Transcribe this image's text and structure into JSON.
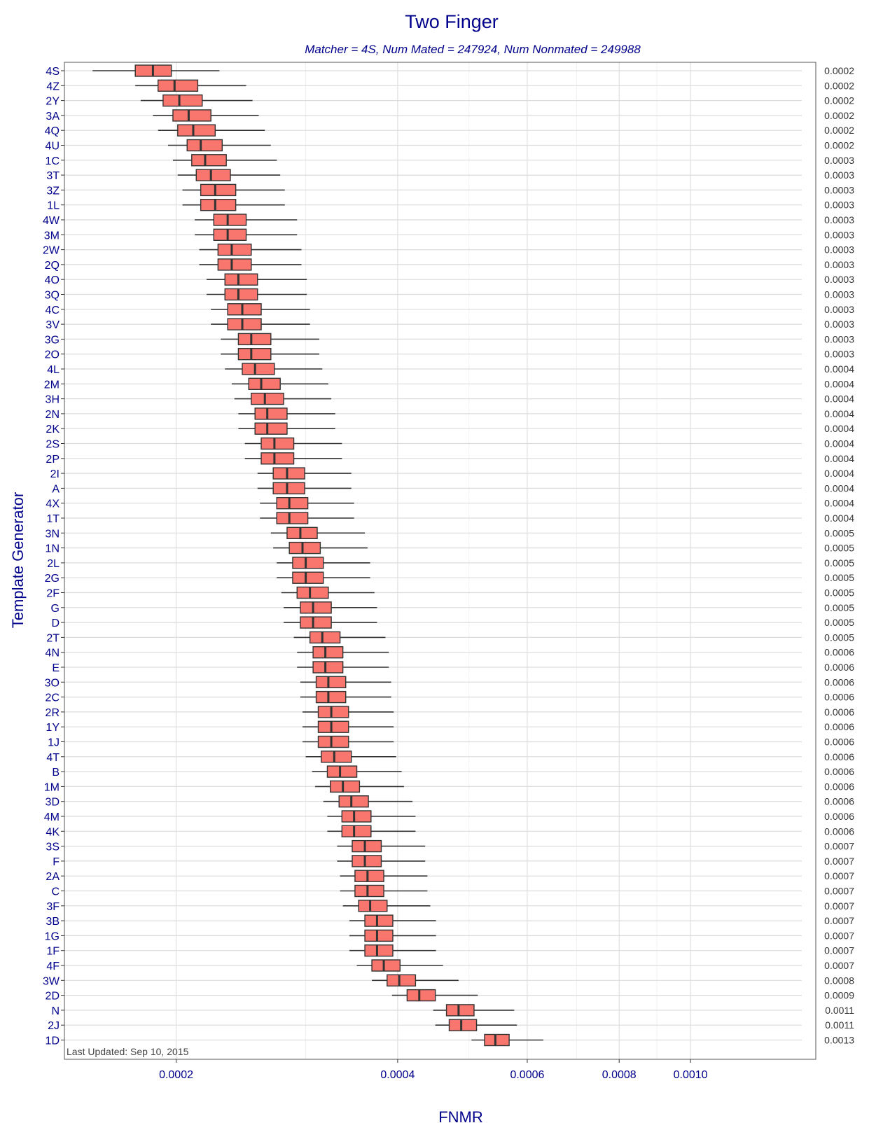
{
  "chart_data": {
    "type": "boxplot",
    "title": "Two Finger",
    "subtitle": "Matcher = 4S,   Num Mated = 247924,   Num Nonmated = 249988",
    "xlabel": "FNMR",
    "ylabel": "Template Generator",
    "x_scale": "log",
    "xlim": [
      0.000141,
      0.00148
    ],
    "x_ticks": [
      {
        "value": 0.0002,
        "label": "0.0002"
      },
      {
        "value": 0.0004,
        "label": "0.0004"
      },
      {
        "value": 0.0006,
        "label": "0.0006"
      },
      {
        "value": 0.0008,
        "label": "0.0008"
      },
      {
        "value": 0.001,
        "label": "0.0010"
      }
    ],
    "x_minor_ticks": [
      0.0003,
      0.0005,
      0.0007,
      0.0009
    ],
    "box_fill": "#f8766d",
    "box_stroke": "#333333",
    "grid": true,
    "footnote": "Last Updated: Sep 10, 2015",
    "series": [
      {
        "name": "4S",
        "label": "0.0002",
        "whisker_low": 0.000154,
        "q1": 0.000176,
        "median": 0.000186,
        "q3": 0.000197,
        "whisker_high": 0.000229
      },
      {
        "name": "4Z",
        "label": "0.0002",
        "whisker_low": 0.000176,
        "q1": 0.000189,
        "median": 0.000199,
        "q3": 0.000214,
        "whisker_high": 0.000249
      },
      {
        "name": "2Y",
        "label": "0.0002",
        "whisker_low": 0.000179,
        "q1": 0.000192,
        "median": 0.000202,
        "q3": 0.000217,
        "whisker_high": 0.000254
      },
      {
        "name": "3A",
        "label": "0.0002",
        "whisker_low": 0.000186,
        "q1": 0.000198,
        "median": 0.000208,
        "q3": 0.000223,
        "whisker_high": 0.000259
      },
      {
        "name": "4Q",
        "label": "0.0002",
        "whisker_low": 0.000189,
        "q1": 0.000201,
        "median": 0.000211,
        "q3": 0.000226,
        "whisker_high": 0.000264
      },
      {
        "name": "4U",
        "label": "0.0002",
        "whisker_low": 0.000195,
        "q1": 0.000207,
        "median": 0.000216,
        "q3": 0.000231,
        "whisker_high": 0.000269
      },
      {
        "name": "1C",
        "label": "0.0003",
        "whisker_low": 0.000198,
        "q1": 0.00021,
        "median": 0.000219,
        "q3": 0.000234,
        "whisker_high": 0.000274
      },
      {
        "name": "3T",
        "label": "0.0003",
        "whisker_low": 0.000201,
        "q1": 0.000213,
        "median": 0.000223,
        "q3": 0.000237,
        "whisker_high": 0.000277
      },
      {
        "name": "3Z",
        "label": "0.0003",
        "whisker_low": 0.000204,
        "q1": 0.000216,
        "median": 0.000226,
        "q3": 0.000241,
        "whisker_high": 0.000281
      },
      {
        "name": "1L",
        "label": "0.0003",
        "whisker_low": 0.000204,
        "q1": 0.000216,
        "median": 0.000226,
        "q3": 0.000241,
        "whisker_high": 0.000281
      },
      {
        "name": "4W",
        "label": "0.0003",
        "whisker_low": 0.000212,
        "q1": 0.000225,
        "median": 0.000235,
        "q3": 0.000249,
        "whisker_high": 0.000292
      },
      {
        "name": "3M",
        "label": "0.0003",
        "whisker_low": 0.000212,
        "q1": 0.000225,
        "median": 0.000235,
        "q3": 0.000249,
        "whisker_high": 0.000292
      },
      {
        "name": "2W",
        "label": "0.0003",
        "whisker_low": 0.000215,
        "q1": 0.000228,
        "median": 0.000238,
        "q3": 0.000253,
        "whisker_high": 0.000296
      },
      {
        "name": "2Q",
        "label": "0.0003",
        "whisker_low": 0.000215,
        "q1": 0.000228,
        "median": 0.000238,
        "q3": 0.000253,
        "whisker_high": 0.000296
      },
      {
        "name": "4O",
        "label": "0.0003",
        "whisker_low": 0.00022,
        "q1": 0.000233,
        "median": 0.000243,
        "q3": 0.000258,
        "whisker_high": 0.000301
      },
      {
        "name": "3Q",
        "label": "0.0003",
        "whisker_low": 0.00022,
        "q1": 0.000233,
        "median": 0.000243,
        "q3": 0.000258,
        "whisker_high": 0.000301
      },
      {
        "name": "4C",
        "label": "0.0003",
        "whisker_low": 0.000223,
        "q1": 0.000235,
        "median": 0.000246,
        "q3": 0.000261,
        "whisker_high": 0.000304
      },
      {
        "name": "3V",
        "label": "0.0003",
        "whisker_low": 0.000223,
        "q1": 0.000235,
        "median": 0.000246,
        "q3": 0.000261,
        "whisker_high": 0.000304
      },
      {
        "name": "3G",
        "label": "0.0003",
        "whisker_low": 0.00023,
        "q1": 0.000243,
        "median": 0.000253,
        "q3": 0.000269,
        "whisker_high": 0.000313
      },
      {
        "name": "2O",
        "label": "0.0003",
        "whisker_low": 0.00023,
        "q1": 0.000243,
        "median": 0.000253,
        "q3": 0.000269,
        "whisker_high": 0.000313
      },
      {
        "name": "4L",
        "label": "0.0004",
        "whisker_low": 0.000233,
        "q1": 0.000246,
        "median": 0.000256,
        "q3": 0.000272,
        "whisker_high": 0.000316
      },
      {
        "name": "2M",
        "label": "0.0004",
        "whisker_low": 0.000238,
        "q1": 0.000251,
        "median": 0.000261,
        "q3": 0.000277,
        "whisker_high": 0.000322
      },
      {
        "name": "3H",
        "label": "0.0004",
        "whisker_low": 0.00024,
        "q1": 0.000253,
        "median": 0.000264,
        "q3": 0.00028,
        "whisker_high": 0.000325
      },
      {
        "name": "2N",
        "label": "0.0004",
        "whisker_low": 0.000243,
        "q1": 0.000256,
        "median": 0.000266,
        "q3": 0.000283,
        "whisker_high": 0.000329
      },
      {
        "name": "2K",
        "label": "0.0004",
        "whisker_low": 0.000243,
        "q1": 0.000256,
        "median": 0.000266,
        "q3": 0.000283,
        "whisker_high": 0.000329
      },
      {
        "name": "2S",
        "label": "0.0004",
        "whisker_low": 0.000248,
        "q1": 0.000261,
        "median": 0.000272,
        "q3": 0.000289,
        "whisker_high": 0.000336
      },
      {
        "name": "2P",
        "label": "0.0004",
        "whisker_low": 0.000248,
        "q1": 0.000261,
        "median": 0.000272,
        "q3": 0.000289,
        "whisker_high": 0.000336
      },
      {
        "name": "2I",
        "label": "0.0004",
        "whisker_low": 0.000258,
        "q1": 0.000271,
        "median": 0.000283,
        "q3": 0.000299,
        "whisker_high": 0.000346
      },
      {
        "name": "A",
        "label": "0.0004",
        "whisker_low": 0.000258,
        "q1": 0.000271,
        "median": 0.000283,
        "q3": 0.000299,
        "whisker_high": 0.000346
      },
      {
        "name": "4X",
        "label": "0.0004",
        "whisker_low": 0.00026,
        "q1": 0.000274,
        "median": 0.000285,
        "q3": 0.000302,
        "whisker_high": 0.000349
      },
      {
        "name": "1T",
        "label": "0.0004",
        "whisker_low": 0.00026,
        "q1": 0.000274,
        "median": 0.000285,
        "q3": 0.000302,
        "whisker_high": 0.000349
      },
      {
        "name": "3N",
        "label": "0.0005",
        "whisker_low": 0.000269,
        "q1": 0.000283,
        "median": 0.000295,
        "q3": 0.000311,
        "whisker_high": 0.000361
      },
      {
        "name": "1N",
        "label": "0.0005",
        "whisker_low": 0.000271,
        "q1": 0.000285,
        "median": 0.000297,
        "q3": 0.000314,
        "whisker_high": 0.000364
      },
      {
        "name": "2L",
        "label": "0.0005",
        "whisker_low": 0.000274,
        "q1": 0.000288,
        "median": 0.0003,
        "q3": 0.000317,
        "whisker_high": 0.000367
      },
      {
        "name": "2G",
        "label": "0.0005",
        "whisker_low": 0.000274,
        "q1": 0.000288,
        "median": 0.0003,
        "q3": 0.000317,
        "whisker_high": 0.000367
      },
      {
        "name": "2F",
        "label": "0.0005",
        "whisker_low": 0.000278,
        "q1": 0.000292,
        "median": 0.000304,
        "q3": 0.000322,
        "whisker_high": 0.000372
      },
      {
        "name": "G",
        "label": "0.0005",
        "whisker_low": 0.00028,
        "q1": 0.000295,
        "median": 0.000307,
        "q3": 0.000325,
        "whisker_high": 0.000375
      },
      {
        "name": "D",
        "label": "0.0005",
        "whisker_low": 0.00028,
        "q1": 0.000295,
        "median": 0.000307,
        "q3": 0.000325,
        "whisker_high": 0.000375
      },
      {
        "name": "2T",
        "label": "0.0005",
        "whisker_low": 0.000289,
        "q1": 0.000304,
        "median": 0.000316,
        "q3": 0.000334,
        "whisker_high": 0.000385
      },
      {
        "name": "4N",
        "label": "0.0006",
        "whisker_low": 0.000292,
        "q1": 0.000307,
        "median": 0.000319,
        "q3": 0.000337,
        "whisker_high": 0.000389
      },
      {
        "name": "E",
        "label": "0.0006",
        "whisker_low": 0.000292,
        "q1": 0.000307,
        "median": 0.000319,
        "q3": 0.000337,
        "whisker_high": 0.000389
      },
      {
        "name": "3O",
        "label": "0.0006",
        "whisker_low": 0.000295,
        "q1": 0.00031,
        "median": 0.000322,
        "q3": 0.00034,
        "whisker_high": 0.000392
      },
      {
        "name": "2C",
        "label": "0.0006",
        "whisker_low": 0.000295,
        "q1": 0.00031,
        "median": 0.000322,
        "q3": 0.00034,
        "whisker_high": 0.000392
      },
      {
        "name": "2R",
        "label": "0.0006",
        "whisker_low": 0.000297,
        "q1": 0.000312,
        "median": 0.000325,
        "q3": 0.000343,
        "whisker_high": 0.000395
      },
      {
        "name": "1Y",
        "label": "0.0006",
        "whisker_low": 0.000297,
        "q1": 0.000312,
        "median": 0.000325,
        "q3": 0.000343,
        "whisker_high": 0.000395
      },
      {
        "name": "1J",
        "label": "0.0006",
        "whisker_low": 0.000297,
        "q1": 0.000312,
        "median": 0.000325,
        "q3": 0.000343,
        "whisker_high": 0.000395
      },
      {
        "name": "4T",
        "label": "0.0006",
        "whisker_low": 0.0003,
        "q1": 0.000315,
        "median": 0.000328,
        "q3": 0.000346,
        "whisker_high": 0.000398
      },
      {
        "name": "B",
        "label": "0.0006",
        "whisker_low": 0.000306,
        "q1": 0.000321,
        "median": 0.000334,
        "q3": 0.000352,
        "whisker_high": 0.000405
      },
      {
        "name": "1M",
        "label": "0.0006",
        "whisker_low": 0.000309,
        "q1": 0.000324,
        "median": 0.000337,
        "q3": 0.000355,
        "whisker_high": 0.000408
      },
      {
        "name": "3D",
        "label": "0.0006",
        "whisker_low": 0.000317,
        "q1": 0.000333,
        "median": 0.000346,
        "q3": 0.000365,
        "whisker_high": 0.000419
      },
      {
        "name": "4M",
        "label": "0.0006",
        "whisker_low": 0.000321,
        "q1": 0.000336,
        "median": 0.000349,
        "q3": 0.000368,
        "whisker_high": 0.000423
      },
      {
        "name": "4K",
        "label": "0.0006",
        "whisker_low": 0.000321,
        "q1": 0.000336,
        "median": 0.000349,
        "q3": 0.000368,
        "whisker_high": 0.000423
      },
      {
        "name": "3S",
        "label": "0.0007",
        "whisker_low": 0.000331,
        "q1": 0.000347,
        "median": 0.000361,
        "q3": 0.00038,
        "whisker_high": 0.000436
      },
      {
        "name": "F",
        "label": "0.0007",
        "whisker_low": 0.000331,
        "q1": 0.000347,
        "median": 0.000361,
        "q3": 0.00038,
        "whisker_high": 0.000436
      },
      {
        "name": "2A",
        "label": "0.0007",
        "whisker_low": 0.000334,
        "q1": 0.00035,
        "median": 0.000364,
        "q3": 0.000383,
        "whisker_high": 0.000439
      },
      {
        "name": "C",
        "label": "0.0007",
        "whisker_low": 0.000334,
        "q1": 0.00035,
        "median": 0.000364,
        "q3": 0.000383,
        "whisker_high": 0.000439
      },
      {
        "name": "3F",
        "label": "0.0007",
        "whisker_low": 0.000337,
        "q1": 0.000354,
        "median": 0.000367,
        "q3": 0.000387,
        "whisker_high": 0.000443
      },
      {
        "name": "3B",
        "label": "0.0007",
        "whisker_low": 0.000344,
        "q1": 0.000361,
        "median": 0.000375,
        "q3": 0.000394,
        "whisker_high": 0.000451
      },
      {
        "name": "1G",
        "label": "0.0007",
        "whisker_low": 0.000344,
        "q1": 0.000361,
        "median": 0.000375,
        "q3": 0.000394,
        "whisker_high": 0.000451
      },
      {
        "name": "1F",
        "label": "0.0007",
        "whisker_low": 0.000344,
        "q1": 0.000361,
        "median": 0.000375,
        "q3": 0.000394,
        "whisker_high": 0.000451
      },
      {
        "name": "4F",
        "label": "0.0007",
        "whisker_low": 0.000352,
        "q1": 0.000369,
        "median": 0.000383,
        "q3": 0.000403,
        "whisker_high": 0.000461
      },
      {
        "name": "3W",
        "label": "0.0008",
        "whisker_low": 0.000369,
        "q1": 0.000387,
        "median": 0.000402,
        "q3": 0.000423,
        "whisker_high": 0.000484
      },
      {
        "name": "2D",
        "label": "0.0009",
        "whisker_low": 0.000393,
        "q1": 0.000412,
        "median": 0.000428,
        "q3": 0.00045,
        "whisker_high": 0.000514
      },
      {
        "name": "N",
        "label": "0.0011",
        "whisker_low": 0.000447,
        "q1": 0.000466,
        "median": 0.000484,
        "q3": 0.000508,
        "whisker_high": 0.000576
      },
      {
        "name": "2J",
        "label": "0.0011",
        "whisker_low": 0.00045,
        "q1": 0.00047,
        "median": 0.000488,
        "q3": 0.000512,
        "whisker_high": 0.000581
      },
      {
        "name": "1D",
        "label": "0.0013",
        "whisker_low": 0.000504,
        "q1": 0.000525,
        "median": 0.000543,
        "q3": 0.000567,
        "whisker_high": 0.000631
      }
    ]
  }
}
